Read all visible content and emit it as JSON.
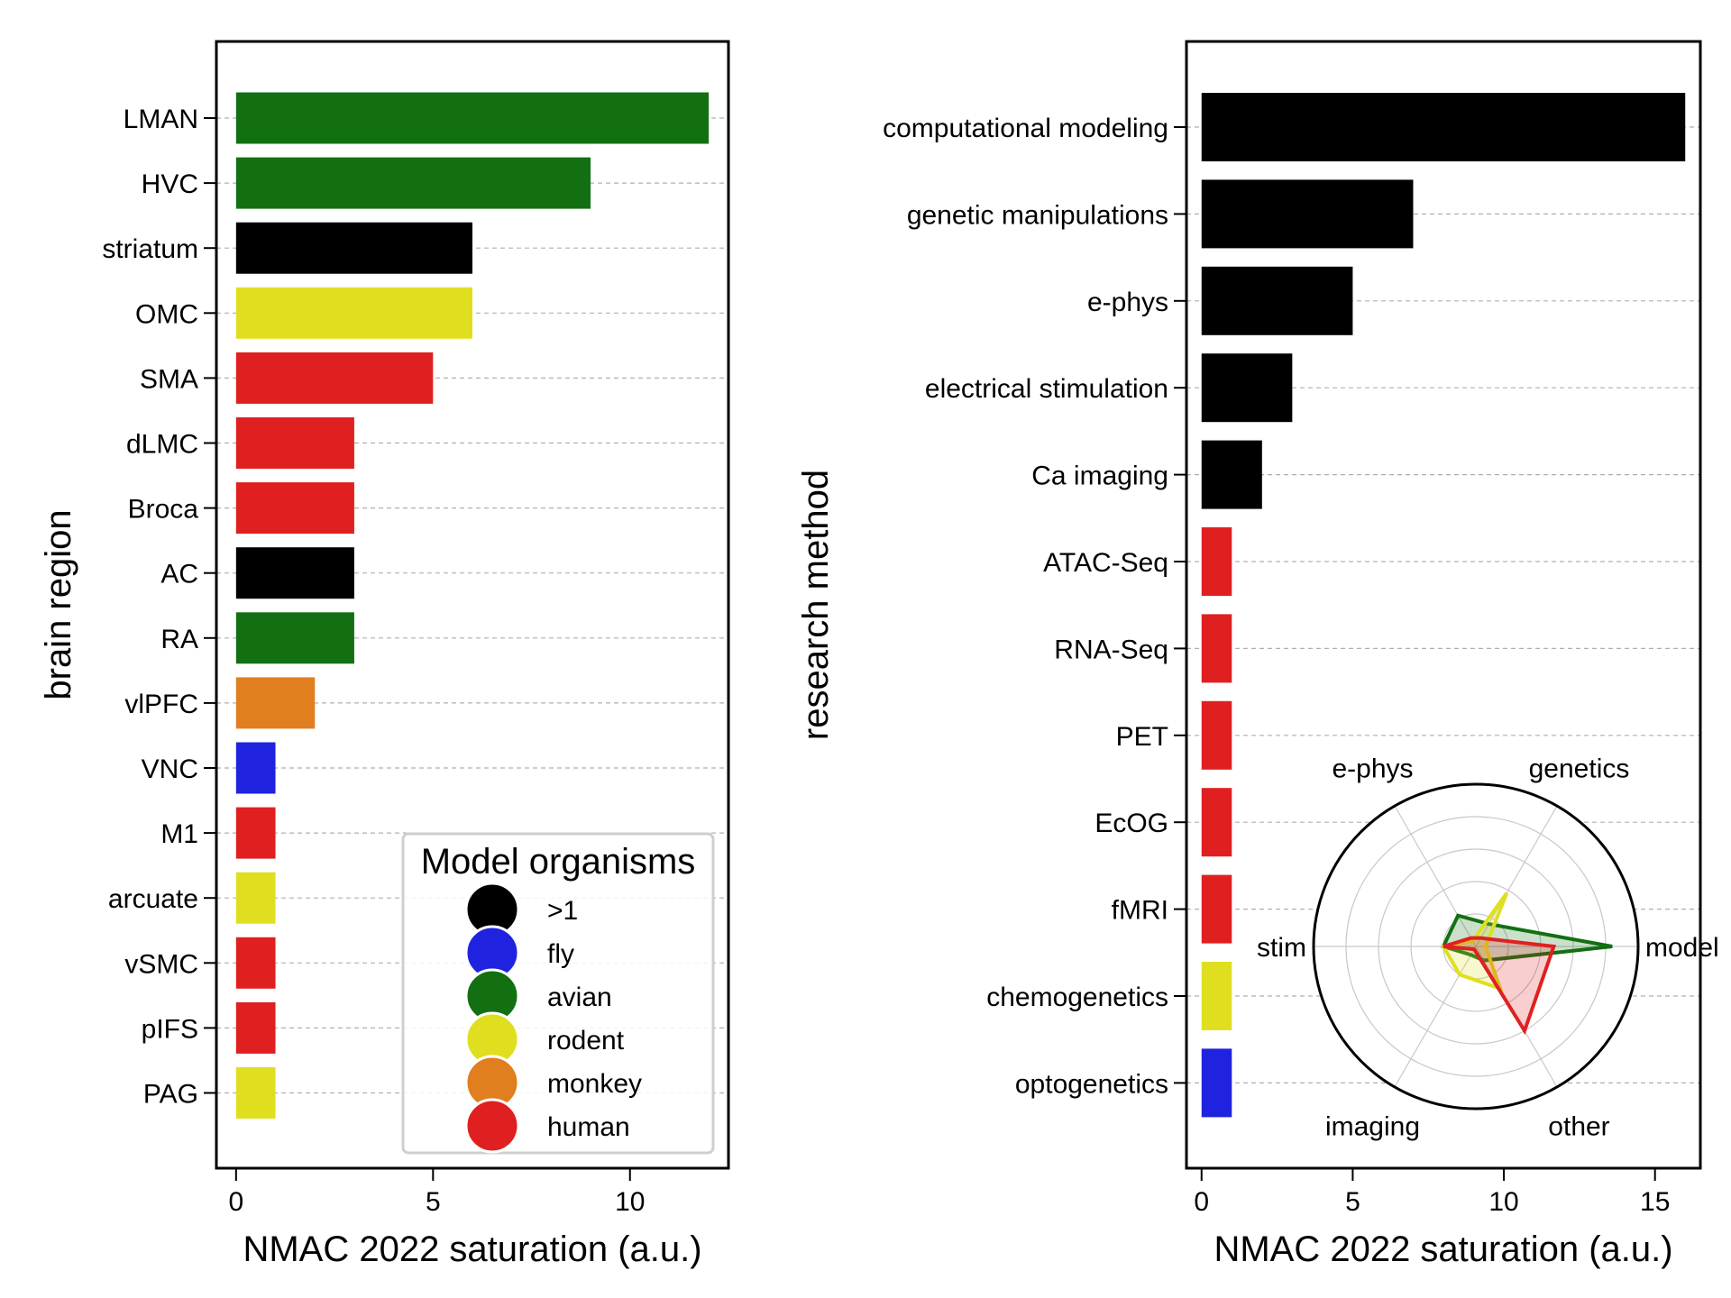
{
  "colors": {
    ">1": "#000000",
    "fly": "#1f23e0",
    "avian": "#127012",
    "rodent": "#dfdf20",
    "monkey": "#e07e20",
    "human": "#e02020"
  },
  "chart_data": [
    {
      "type": "bar",
      "orientation": "horizontal",
      "categories": [
        "LMAN",
        "HVC",
        "striatum",
        "OMC",
        "SMA",
        "dLMC",
        "Broca",
        "AC",
        "RA",
        "vlPFC",
        "VNC",
        "M1",
        "arcuate",
        "vSMC",
        "pIFS",
        "PAG"
      ],
      "values": [
        12,
        9,
        6,
        6,
        5,
        3,
        3,
        3,
        3,
        2,
        1,
        1,
        1,
        1,
        1,
        1
      ],
      "bar_groups": [
        ">1-avian",
        "avian",
        ">1",
        "rodent",
        "human",
        "human",
        "human",
        ">1",
        "avian",
        "monkey",
        "fly",
        "human",
        "rodent",
        "human",
        "human",
        "rodent"
      ],
      "bar_colors": [
        "#127012",
        "#127012",
        "#000000",
        "#dfdf20",
        "#e02020",
        "#e02020",
        "#e02020",
        "#000000",
        "#127012",
        "#e07e20",
        "#1f23e0",
        "#e02020",
        "#dfdf20",
        "#e02020",
        "#e02020",
        "#dfdf20"
      ],
      "xlabel": "NMAC 2022 saturation (a.u.)",
      "ylabel": "brain region",
      "xticks": [
        0,
        5,
        10
      ],
      "xlim": [
        -0.5,
        12.5
      ],
      "grid": "horizontal dashed",
      "legend": {
        "title": "Model organisms",
        "placement": "lower-right",
        "entries": [
          ">1",
          "fly",
          "avian",
          "rodent",
          "monkey",
          "human"
        ]
      }
    },
    {
      "type": "bar",
      "orientation": "horizontal",
      "categories": [
        "computational modeling",
        "genetic manipulations",
        "e-phys",
        "electrical stimulation",
        "Ca imaging",
        "ATAC-Seq",
        "RNA-Seq",
        "PET",
        "EcOG",
        "fMRI",
        "chemogenetics",
        "optogenetics"
      ],
      "values": [
        16,
        7,
        5,
        3,
        2,
        1,
        1,
        1,
        1,
        1,
        1,
        1
      ],
      "bar_colors": [
        "#000000",
        "#000000",
        "#000000",
        "#000000",
        "#000000",
        "#e02020",
        "#e02020",
        "#e02020",
        "#e02020",
        "#e02020",
        "#dfdf20",
        "#1f23e0"
      ],
      "xlabel": "NMAC 2022 saturation (a.u.)",
      "ylabel": "research method",
      "xticks": [
        0,
        5,
        10,
        15
      ],
      "xlim": [
        -0.5,
        16.5
      ],
      "grid": "horizontal dashed"
    },
    {
      "type": "radar",
      "axes": [
        "model",
        "genetics",
        "e-phys",
        "stim",
        "imaging",
        "other"
      ],
      "rmax": 5,
      "rings": [
        1,
        2,
        3,
        4,
        5
      ],
      "series": [
        {
          "color": "#127012",
          "values": [
            4.2,
            0.8,
            1.1,
            1.0,
            0.3,
            0.5
          ]
        },
        {
          "color": "#dfdf20",
          "values": [
            0.3,
            1.9,
            0.2,
            1.0,
            1.0,
            1.5
          ]
        },
        {
          "color": "#e02020",
          "values": [
            2.4,
            0.3,
            0.3,
            1.0,
            0.1,
            3.0
          ]
        }
      ]
    }
  ]
}
